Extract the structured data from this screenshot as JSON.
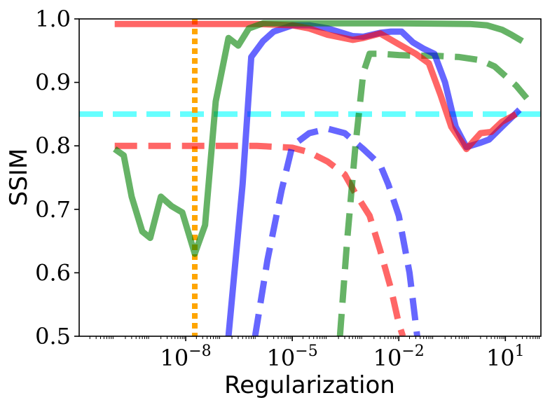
{
  "chart_data": {
    "type": "line",
    "xlabel": "Regularization",
    "ylabel": "SSIM",
    "x_scale": "log",
    "xlim": [
      1e-11,
      100.0
    ],
    "ylim": [
      0.5,
      1.0
    ],
    "x_ticks": [
      {
        "value": 1e-08,
        "base": "10",
        "exp": "−8"
      },
      {
        "value": 1e-05,
        "base": "10",
        "exp": "−5"
      },
      {
        "value": 0.01,
        "base": "10",
        "exp": "−2"
      },
      {
        "value": 10,
        "base": "10",
        "exp": "1"
      }
    ],
    "y_ticks": [
      {
        "value": 0.5,
        "label": "0.5"
      },
      {
        "value": 0.6,
        "label": "0.6"
      },
      {
        "value": 0.7,
        "label": "0.7"
      },
      {
        "value": 0.8,
        "label": "0.8"
      },
      {
        "value": 0.9,
        "label": "0.9"
      },
      {
        "value": 1.0,
        "label": "1.0"
      }
    ],
    "grid": false,
    "reference_lines": [
      {
        "orientation": "horizontal",
        "value": 0.85,
        "color": "#00ffff",
        "style": "dashed"
      },
      {
        "orientation": "vertical",
        "value": 1.8e-08,
        "color": "#ffa500",
        "style": "dotted"
      }
    ],
    "series": [
      {
        "color": "#ff0000",
        "style": "solid",
        "points": [
          [
            1e-10,
            0.992
          ],
          [
            1e-08,
            0.992
          ],
          [
            1e-06,
            0.992
          ],
          [
            1e-05,
            0.99
          ],
          [
            3e-05,
            0.985
          ],
          [
            0.0001,
            0.975
          ],
          [
            0.0005,
            0.967
          ],
          [
            0.001,
            0.97
          ],
          [
            0.003,
            0.977
          ],
          [
            0.01,
            0.96
          ],
          [
            0.03,
            0.945
          ],
          [
            0.07,
            0.93
          ],
          [
            0.15,
            0.88
          ],
          [
            0.3,
            0.83
          ],
          [
            0.8,
            0.795
          ],
          [
            2,
            0.82
          ],
          [
            4,
            0.822
          ],
          [
            8,
            0.838
          ],
          [
            20,
            0.85
          ]
        ]
      },
      {
        "color": "#0000ff",
        "style": "solid",
        "points": [
          [
            1.6e-07,
            0.5
          ],
          [
            4e-07,
            0.74
          ],
          [
            7e-07,
            0.94
          ],
          [
            1.5e-06,
            0.965
          ],
          [
            3e-06,
            0.98
          ],
          [
            1e-05,
            0.99
          ],
          [
            3e-05,
            0.99
          ],
          [
            0.0001,
            0.985
          ],
          [
            0.0005,
            0.973
          ],
          [
            0.001,
            0.972
          ],
          [
            0.003,
            0.978
          ],
          [
            0.006,
            0.98
          ],
          [
            0.012,
            0.98
          ],
          [
            0.025,
            0.963
          ],
          [
            0.05,
            0.953
          ],
          [
            0.1,
            0.945
          ],
          [
            0.2,
            0.9
          ],
          [
            0.4,
            0.83
          ],
          [
            0.8,
            0.798
          ],
          [
            2,
            0.805
          ],
          [
            3.5,
            0.81
          ],
          [
            8,
            0.83
          ],
          [
            25,
            0.857
          ]
        ]
      },
      {
        "color": "#008000",
        "style": "solid",
        "points": [
          [
            1e-10,
            0.795
          ],
          [
            1.8e-10,
            0.785
          ],
          [
            3e-10,
            0.72
          ],
          [
            6e-10,
            0.665
          ],
          [
            1e-09,
            0.655
          ],
          [
            2e-09,
            0.72
          ],
          [
            4e-09,
            0.705
          ],
          [
            8e-09,
            0.695
          ],
          [
            1.8e-08,
            0.63
          ],
          [
            3.5e-08,
            0.675
          ],
          [
            7e-08,
            0.87
          ],
          [
            1.6e-07,
            0.97
          ],
          [
            3e-07,
            0.958
          ],
          [
            6e-07,
            0.985
          ],
          [
            1.5e-06,
            0.993
          ],
          [
            0.0001,
            0.993
          ],
          [
            0.01,
            0.993
          ],
          [
            1,
            0.992
          ],
          [
            3,
            0.99
          ],
          [
            8,
            0.983
          ],
          [
            15,
            0.975
          ],
          [
            30,
            0.965
          ]
        ]
      },
      {
        "color": "#ff0000",
        "style": "dashed",
        "points": [
          [
            1e-10,
            0.8
          ],
          [
            1e-08,
            0.8
          ],
          [
            1e-06,
            0.8
          ],
          [
            1e-05,
            0.797
          ],
          [
            3e-05,
            0.79
          ],
          [
            0.0001,
            0.775
          ],
          [
            0.0003,
            0.755
          ],
          [
            0.0006,
            0.725
          ],
          [
            0.0015,
            0.69
          ],
          [
            0.003,
            0.635
          ],
          [
            0.006,
            0.575
          ],
          [
            0.01,
            0.52
          ],
          [
            0.013,
            0.5
          ]
        ]
      },
      {
        "color": "#0000ff",
        "style": "dashed",
        "points": [
          [
            9e-07,
            0.5
          ],
          [
            2e-06,
            0.62
          ],
          [
            5e-06,
            0.73
          ],
          [
            1e-05,
            0.8
          ],
          [
            3e-05,
            0.82
          ],
          [
            0.0001,
            0.827
          ],
          [
            0.0003,
            0.82
          ],
          [
            0.001,
            0.795
          ],
          [
            0.003,
            0.77
          ],
          [
            0.005,
            0.74
          ],
          [
            0.01,
            0.69
          ],
          [
            0.02,
            0.6
          ],
          [
            0.033,
            0.5
          ]
        ]
      },
      {
        "color": "#008000",
        "style": "dashed",
        "points": [
          [
            0.00022,
            0.5
          ],
          [
            0.00035,
            0.65
          ],
          [
            0.0006,
            0.8
          ],
          [
            0.001,
            0.915
          ],
          [
            0.0015,
            0.945
          ],
          [
            0.003,
            0.945
          ],
          [
            0.01,
            0.943
          ],
          [
            0.03,
            0.942
          ],
          [
            0.1,
            0.942
          ],
          [
            0.5,
            0.94
          ],
          [
            2,
            0.935
          ],
          [
            5,
            0.925
          ],
          [
            10,
            0.91
          ],
          [
            20,
            0.895
          ],
          [
            40,
            0.875
          ]
        ]
      }
    ]
  }
}
